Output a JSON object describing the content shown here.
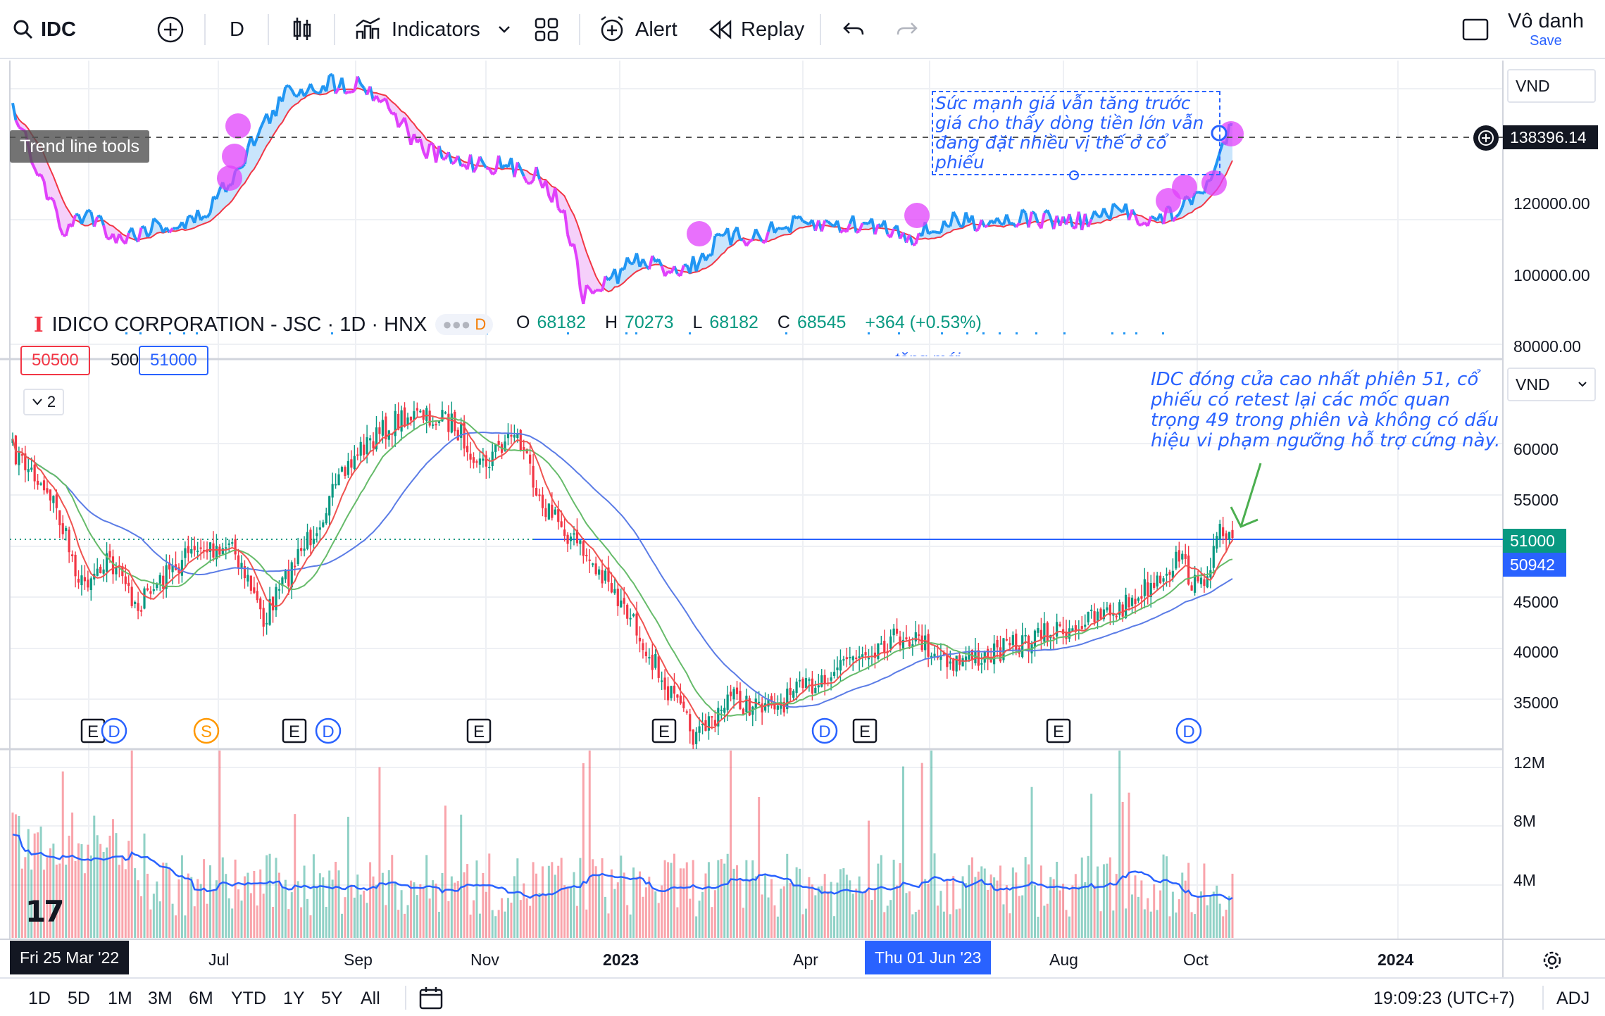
{
  "toolbar": {
    "symbol": "IDC",
    "interval": "D",
    "indicators_label": "Indicators",
    "alert_label": "Alert",
    "replay_label": "Replay",
    "user_name": "Vô danh",
    "save_label": "Save"
  },
  "legend": {
    "symbol_logo_letter": "I",
    "title": "IDICO CORPORATION - JSC · 1D · HNX",
    "market_badge": "D",
    "open_label": "O",
    "open_value": "68182",
    "high_label": "H",
    "high_value": "70273",
    "low_label": "L",
    "low_value": "68182",
    "close_label": "C",
    "close_value": "68545",
    "change": "+364 (+0.53%)",
    "ma_values": [
      "50500",
      "500",
      "51000"
    ],
    "collapse_count": "2"
  },
  "tooltip": "Trend line tools",
  "notes": {
    "top": "Sức mạnh giá vẫn tăng trước giá cho thấy dòng tiền lớn vẫn đang đặt nhiều vị thế ở cổ phiếu",
    "right": "IDC đóng cửa cao nhất phiên 51, cổ phiếu có retest lại các mốc quan trọng 49 trong phiên và không có dấu hiệu vi phạm ngưỡng hỗ trợ cứng này.",
    "partial_hidden": "tăng mới"
  },
  "top_pane": {
    "currency": "VND",
    "crosshair_price": "138396.14",
    "axis_labels": [
      "120000.00",
      "100000.00",
      "80000.00"
    ]
  },
  "price_pane": {
    "currency": "VND",
    "axis_labels": [
      "60000",
      "55000",
      "45000",
      "40000",
      "35000"
    ],
    "last_price_tag": "51000",
    "ma_tag": "50942"
  },
  "volume_pane": {
    "axis_labels": [
      "12M",
      "8M",
      "4M"
    ]
  },
  "events": [
    "E",
    "D",
    "S",
    "E",
    "D",
    "E",
    "E",
    "D",
    "E",
    "E",
    "D"
  ],
  "time_axis": {
    "start_label": "Fri 25 Mar '22",
    "labels": [
      "Jul",
      "Sep",
      "Nov",
      "2023",
      "Apr",
      "Aug",
      "Oct",
      "2024"
    ],
    "crosshair_label": "Thu 01 Jun '23"
  },
  "bottom_bar": {
    "ranges": [
      "1D",
      "5D",
      "1M",
      "3M",
      "6M",
      "YTD",
      "1Y",
      "5Y",
      "All"
    ],
    "clock": "19:09:23 (UTC+7)",
    "adj": "ADJ"
  },
  "colors": {
    "up": "#089981",
    "down": "#f23645",
    "accent": "#2962ff",
    "rs_line": "#2196f3",
    "rs_down": "#e040fb",
    "marker": "#e040fb",
    "arrow": "#4caf50"
  }
}
